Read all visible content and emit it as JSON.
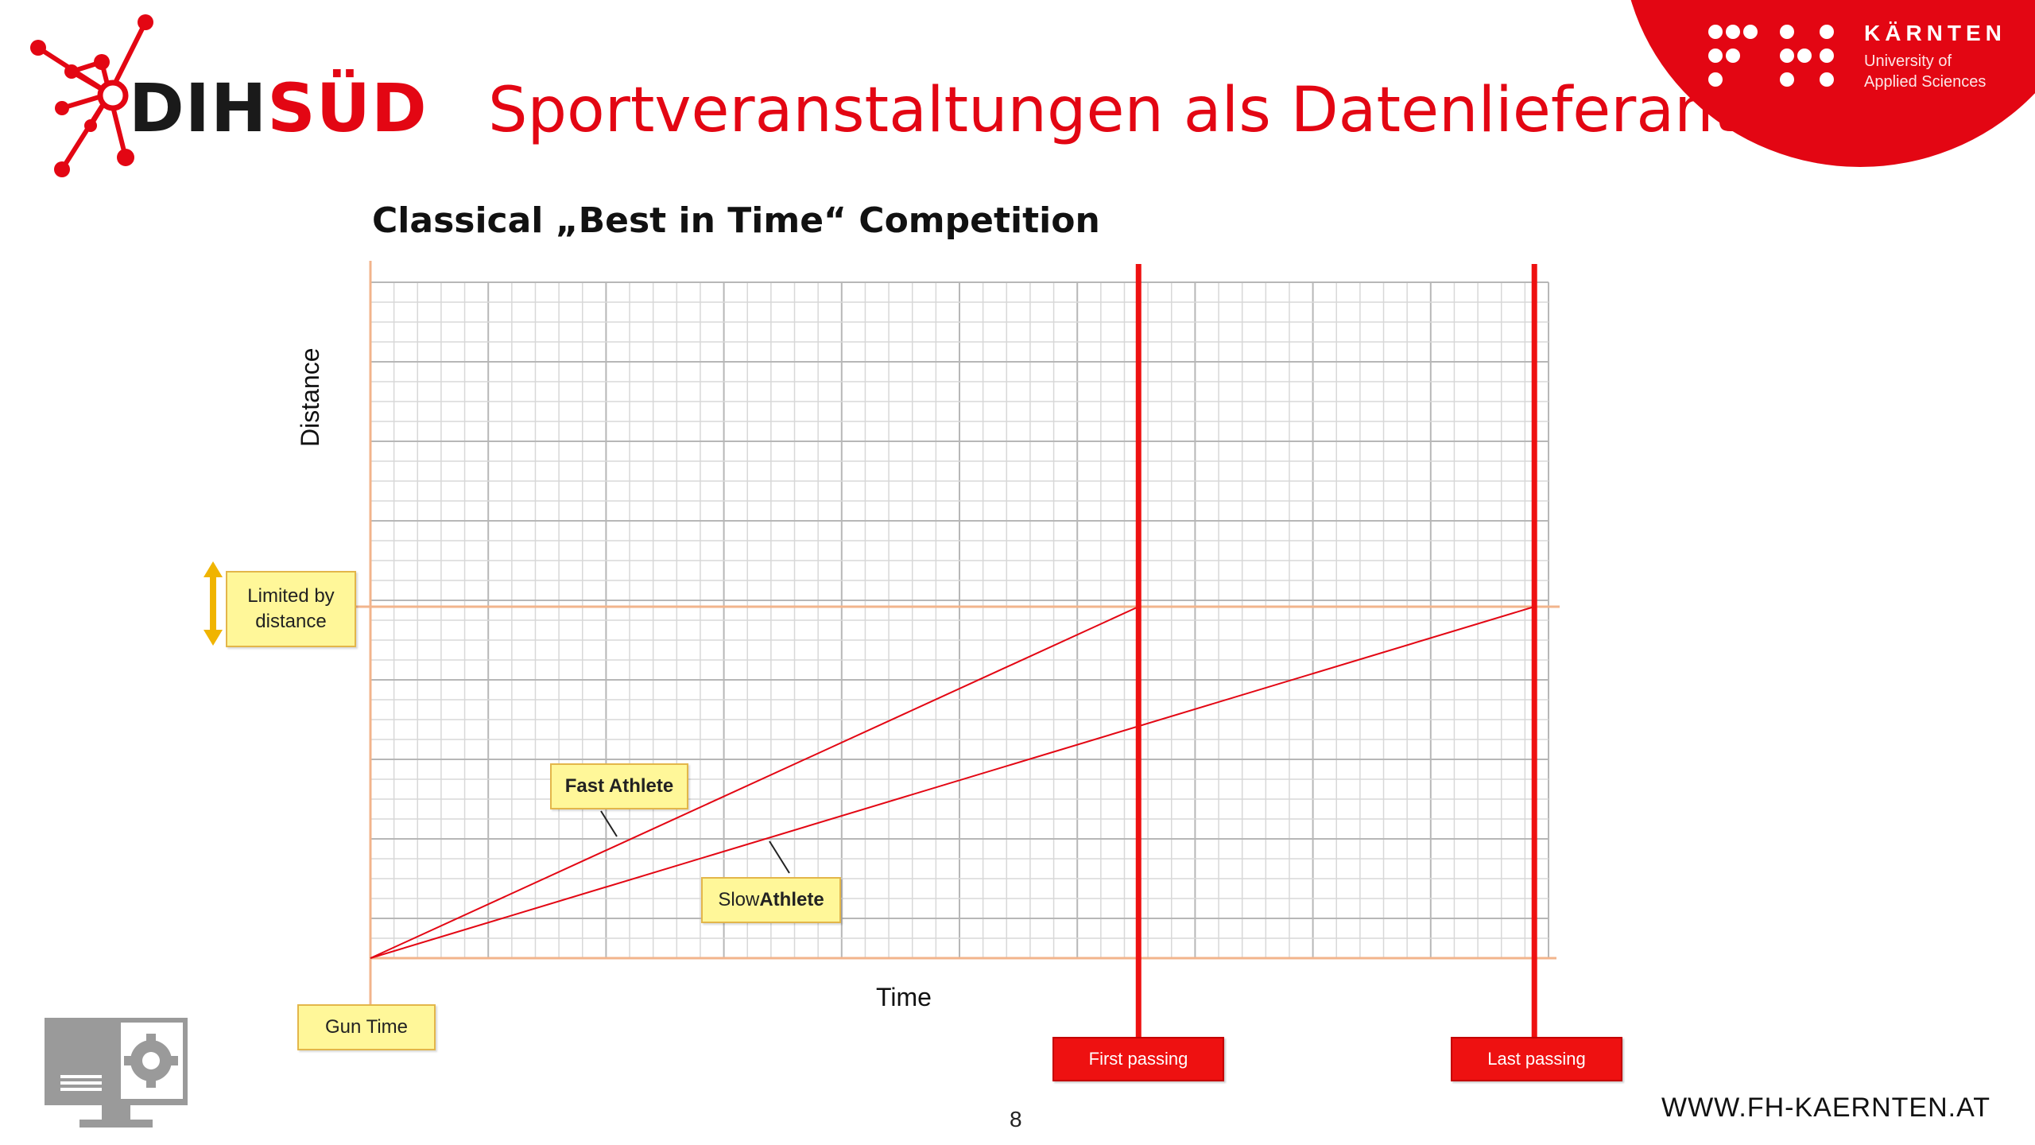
{
  "header": {
    "logo_dih": "DIH",
    "logo_sud": "SÜD",
    "title": "Sportveranstaltungen als Datenlieferant",
    "fh_name": "KÄRNTEN",
    "fh_sub_line1": "University of",
    "fh_sub_line2": "Applied Sciences"
  },
  "colors": {
    "brand_red": "#e30613",
    "grid_major": "#b7b7b7",
    "grid_minor": "#d8d8d8",
    "axis_orange": "#f2b48c",
    "callout_yellow": "#fff799",
    "arrow_gold": "#f0b400"
  },
  "diagram": {
    "subtitle": "Classical „Best in Time“ Competition",
    "ylabel": "Distance",
    "xlabel": "Time",
    "labels": {
      "limited_line1": "Limited by",
      "limited_line2": "distance",
      "fast": "Fast Athlete",
      "slow_prefix": "Slow ",
      "slow_bold": "Athlete",
      "gun": "Gun Time",
      "first": "First passing",
      "last": "Last passing"
    },
    "model": {
      "finish_distance_fraction": 0.52,
      "first_passing_time_fraction": 0.652,
      "last_passing_time_fraction": 0.988
    },
    "icons": [
      "size-arrow-icon",
      "monitor-gear-icon",
      "dih-network-icon",
      "fh-dots-icon"
    ]
  },
  "footer": {
    "page_number": "8",
    "website": "WWW.FH-KAERNTEN.AT"
  }
}
